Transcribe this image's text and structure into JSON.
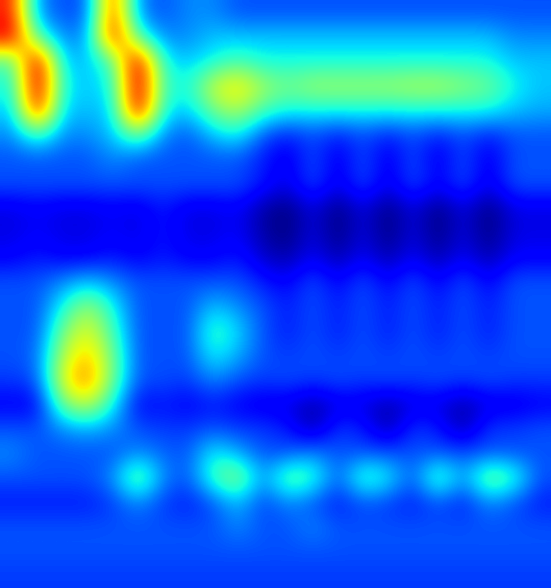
{
  "chart_data": {
    "type": "heatmap",
    "tick_labels": false,
    "grid": false,
    "cells": [
      [
        0.9,
        0.35,
        0.3,
        0.3,
        0.9,
        0.35,
        0.3,
        0.35,
        0.35,
        0.3,
        0.3,
        0.3,
        0.3,
        0.3,
        0.3,
        0.3,
        0.3,
        0.3,
        0.3,
        0.3,
        0.3,
        0.3
      ],
      [
        0.95,
        0.5,
        0.35,
        0.35,
        0.95,
        0.5,
        0.35,
        0.35,
        0.4,
        0.4,
        0.4,
        0.4,
        0.4,
        0.4,
        0.4,
        0.4,
        0.4,
        0.4,
        0.4,
        0.4,
        0.35,
        0.35
      ],
      [
        0.5,
        1.0,
        0.4,
        0.4,
        0.5,
        1.0,
        0.45,
        0.4,
        0.45,
        0.5,
        0.45,
        0.45,
        0.45,
        0.45,
        0.45,
        0.45,
        0.45,
        0.45,
        0.45,
        0.45,
        0.4,
        0.4
      ],
      [
        0.45,
        1.0,
        0.45,
        0.4,
        0.45,
        1.0,
        0.5,
        0.45,
        0.65,
        0.72,
        0.6,
        0.55,
        0.6,
        0.6,
        0.6,
        0.6,
        0.62,
        0.62,
        0.58,
        0.55,
        0.45,
        0.4
      ],
      [
        0.4,
        0.95,
        0.4,
        0.4,
        0.4,
        1.0,
        0.45,
        0.4,
        0.55,
        0.62,
        0.5,
        0.45,
        0.45,
        0.45,
        0.45,
        0.45,
        0.45,
        0.45,
        0.45,
        0.45,
        0.4,
        0.38
      ],
      [
        0.35,
        0.5,
        0.35,
        0.35,
        0.4,
        0.55,
        0.35,
        0.3,
        0.4,
        0.45,
        0.3,
        0.25,
        0.3,
        0.25,
        0.3,
        0.25,
        0.3,
        0.25,
        0.3,
        0.25,
        0.3,
        0.3
      ],
      [
        0.3,
        0.3,
        0.3,
        0.3,
        0.35,
        0.3,
        0.3,
        0.3,
        0.3,
        0.3,
        0.25,
        0.2,
        0.3,
        0.2,
        0.3,
        0.2,
        0.3,
        0.2,
        0.3,
        0.2,
        0.3,
        0.3
      ],
      [
        0.3,
        0.3,
        0.3,
        0.3,
        0.3,
        0.3,
        0.3,
        0.3,
        0.3,
        0.3,
        0.25,
        0.2,
        0.3,
        0.2,
        0.3,
        0.2,
        0.3,
        0.22,
        0.3,
        0.2,
        0.3,
        0.3
      ],
      [
        0.2,
        0.22,
        0.2,
        0.2,
        0.22,
        0.2,
        0.25,
        0.2,
        0.2,
        0.22,
        0.15,
        0.12,
        0.2,
        0.12,
        0.2,
        0.12,
        0.2,
        0.12,
        0.2,
        0.12,
        0.2,
        0.2
      ],
      [
        0.2,
        0.22,
        0.2,
        0.2,
        0.22,
        0.2,
        0.25,
        0.2,
        0.2,
        0.22,
        0.15,
        0.12,
        0.2,
        0.12,
        0.2,
        0.12,
        0.2,
        0.12,
        0.2,
        0.12,
        0.2,
        0.2
      ],
      [
        0.22,
        0.25,
        0.22,
        0.22,
        0.25,
        0.22,
        0.25,
        0.22,
        0.22,
        0.25,
        0.18,
        0.15,
        0.22,
        0.15,
        0.22,
        0.15,
        0.22,
        0.15,
        0.22,
        0.15,
        0.22,
        0.22
      ],
      [
        0.3,
        0.3,
        0.35,
        0.4,
        0.35,
        0.3,
        0.3,
        0.3,
        0.3,
        0.3,
        0.25,
        0.22,
        0.3,
        0.22,
        0.3,
        0.22,
        0.3,
        0.22,
        0.3,
        0.22,
        0.3,
        0.3
      ],
      [
        0.3,
        0.3,
        0.45,
        0.6,
        0.45,
        0.3,
        0.3,
        0.3,
        0.4,
        0.35,
        0.3,
        0.25,
        0.3,
        0.25,
        0.3,
        0.25,
        0.3,
        0.25,
        0.3,
        0.25,
        0.3,
        0.3
      ],
      [
        0.3,
        0.3,
        0.55,
        0.68,
        0.5,
        0.3,
        0.3,
        0.3,
        0.5,
        0.42,
        0.3,
        0.25,
        0.3,
        0.25,
        0.3,
        0.25,
        0.3,
        0.25,
        0.3,
        0.25,
        0.3,
        0.3
      ],
      [
        0.3,
        0.32,
        0.62,
        0.75,
        0.55,
        0.3,
        0.3,
        0.3,
        0.45,
        0.38,
        0.3,
        0.28,
        0.3,
        0.28,
        0.3,
        0.28,
        0.3,
        0.28,
        0.3,
        0.28,
        0.3,
        0.3
      ],
      [
        0.28,
        0.3,
        0.68,
        0.82,
        0.55,
        0.3,
        0.3,
        0.28,
        0.35,
        0.3,
        0.28,
        0.3,
        0.28,
        0.3,
        0.28,
        0.3,
        0.28,
        0.3,
        0.28,
        0.3,
        0.28,
        0.28
      ],
      [
        0.22,
        0.22,
        0.55,
        0.65,
        0.45,
        0.22,
        0.25,
        0.22,
        0.25,
        0.22,
        0.2,
        0.2,
        0.15,
        0.2,
        0.2,
        0.15,
        0.2,
        0.2,
        0.15,
        0.2,
        0.2,
        0.22
      ],
      [
        0.3,
        0.3,
        0.35,
        0.38,
        0.35,
        0.3,
        0.28,
        0.28,
        0.3,
        0.28,
        0.28,
        0.25,
        0.15,
        0.28,
        0.25,
        0.15,
        0.28,
        0.25,
        0.15,
        0.28,
        0.28,
        0.3
      ],
      [
        0.35,
        0.3,
        0.3,
        0.3,
        0.3,
        0.35,
        0.32,
        0.3,
        0.45,
        0.38,
        0.3,
        0.3,
        0.35,
        0.3,
        0.3,
        0.3,
        0.3,
        0.3,
        0.3,
        0.3,
        0.3,
        0.3
      ],
      [
        0.3,
        0.3,
        0.3,
        0.3,
        0.35,
        0.58,
        0.35,
        0.3,
        0.5,
        0.6,
        0.35,
        0.55,
        0.5,
        0.3,
        0.52,
        0.45,
        0.3,
        0.55,
        0.35,
        0.58,
        0.5,
        0.3
      ],
      [
        0.25,
        0.25,
        0.25,
        0.25,
        0.28,
        0.35,
        0.28,
        0.25,
        0.3,
        0.4,
        0.28,
        0.35,
        0.3,
        0.25,
        0.3,
        0.28,
        0.25,
        0.3,
        0.25,
        0.35,
        0.3,
        0.25
      ],
      [
        0.3,
        0.3,
        0.3,
        0.3,
        0.3,
        0.3,
        0.3,
        0.3,
        0.3,
        0.35,
        0.3,
        0.3,
        0.35,
        0.3,
        0.3,
        0.3,
        0.3,
        0.3,
        0.3,
        0.3,
        0.3,
        0.3
      ],
      [
        0.3,
        0.3,
        0.3,
        0.3,
        0.3,
        0.3,
        0.3,
        0.3,
        0.3,
        0.3,
        0.3,
        0.3,
        0.3,
        0.3,
        0.3,
        0.3,
        0.3,
        0.3,
        0.3,
        0.3,
        0.3,
        0.3
      ],
      [
        0.28,
        0.28,
        0.28,
        0.28,
        0.28,
        0.28,
        0.28,
        0.28,
        0.28,
        0.28,
        0.28,
        0.28,
        0.28,
        0.28,
        0.28,
        0.28,
        0.28,
        0.28,
        0.28,
        0.28,
        0.28,
        0.28
      ]
    ]
  }
}
